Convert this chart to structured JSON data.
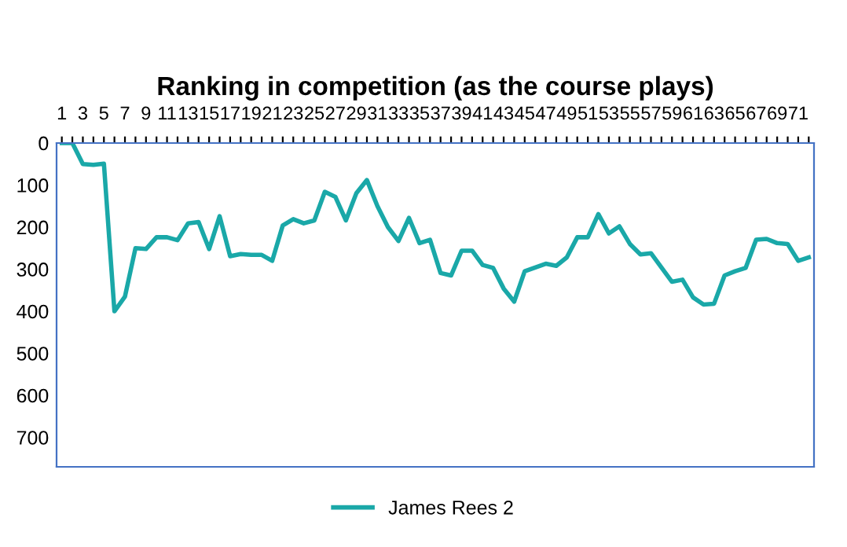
{
  "chart_data": {
    "type": "line",
    "title": "Ranking in competition (as the course plays)",
    "categories": [
      "1",
      null,
      "3",
      null,
      "5",
      null,
      "7",
      null,
      "9",
      null,
      "11",
      null,
      "13",
      null,
      "15",
      null,
      "17",
      null,
      "19",
      null,
      "21",
      null,
      "23",
      null,
      "25",
      null,
      "27",
      null,
      "29",
      null,
      "31",
      null,
      "33",
      null,
      "35",
      null,
      "37",
      null,
      "39",
      null,
      "41",
      null,
      "43",
      null,
      "45",
      null,
      "47",
      null,
      "49",
      null,
      "51",
      null,
      "53",
      null,
      "55",
      null,
      "57",
      null,
      "59",
      null,
      "61",
      null,
      "63",
      null,
      "65",
      null,
      "67",
      null,
      "69",
      null,
      "71",
      null
    ],
    "series": [
      {
        "name": "James Rees 2",
        "color": "#1aa8a8",
        "values": [
          0,
          0,
          50,
          52,
          49,
          400,
          365,
          250,
          252,
          224,
          224,
          231,
          191,
          188,
          252,
          174,
          269,
          264,
          266,
          266,
          280,
          196,
          181,
          191,
          184,
          116,
          128,
          184,
          119,
          88,
          150,
          200,
          233,
          178,
          238,
          230,
          309,
          315,
          256,
          256,
          290,
          297,
          346,
          377,
          305,
          296,
          287,
          292,
          272,
          224,
          224,
          169,
          215,
          198,
          240,
          265,
          262,
          296,
          330,
          325,
          367,
          384,
          382,
          315,
          305,
          297,
          230,
          228,
          238,
          240,
          280,
          272
        ]
      }
    ],
    "ylim": [
      770,
      0
    ],
    "yticks": [
      0,
      100,
      200,
      300,
      400,
      500,
      600,
      700
    ],
    "grid": false,
    "legend": "bottom",
    "marker": "none",
    "line_style": "solid"
  }
}
